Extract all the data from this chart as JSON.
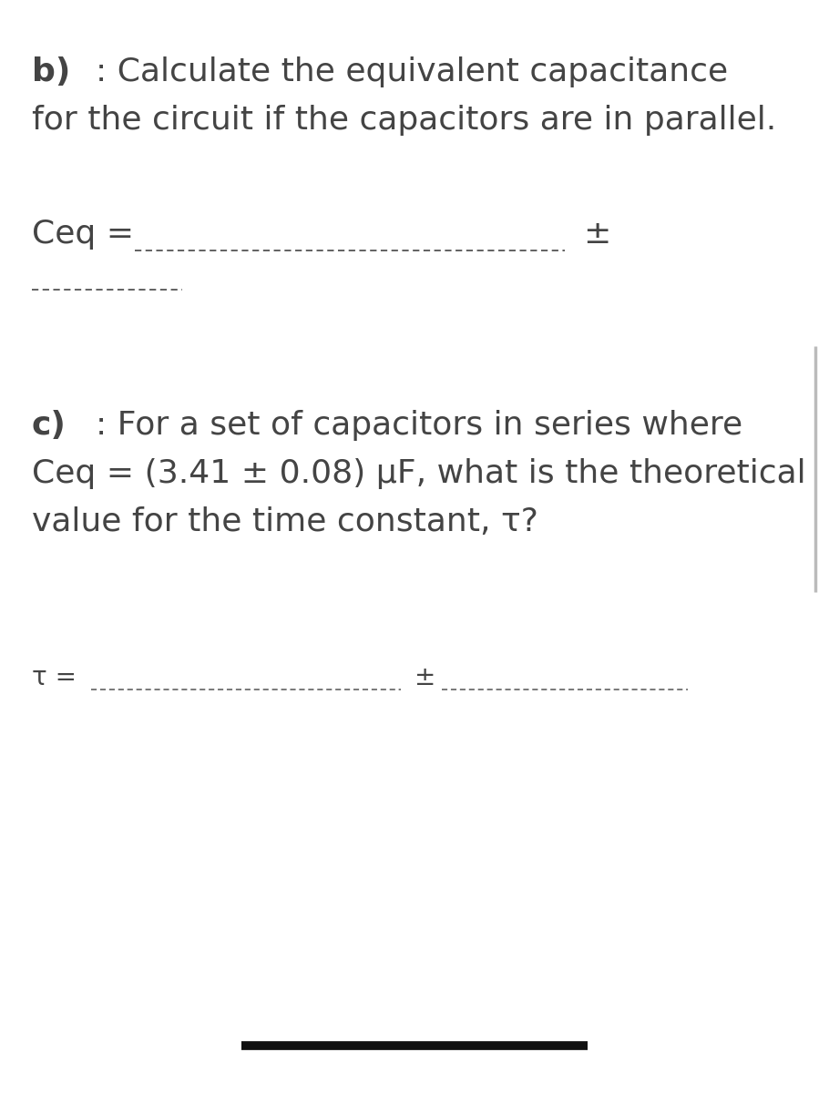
{
  "background_color": "#ffffff",
  "text_color": "#444444",
  "line_color": "#555555",
  "bold_line_color": "#111111",
  "figsize": [
    9.1,
    12.0
  ],
  "dpi": 100,
  "section_b_label": "b)",
  "section_b_text1": ": Calculate the equivalent capacitance",
  "section_b_text2": "for the circuit if the capacitors are in parallel.",
  "ceq_label": "Ceq =",
  "pm_symbol": "±",
  "section_c_label": "c)",
  "section_c_text1": ": For a set of capacitors in series where",
  "section_c_text2": "Ceq = (3.41 ± 0.08) µF, what is the theoretical",
  "section_c_text3": "value for the time constant, τ?",
  "tau_label": "τ ="
}
